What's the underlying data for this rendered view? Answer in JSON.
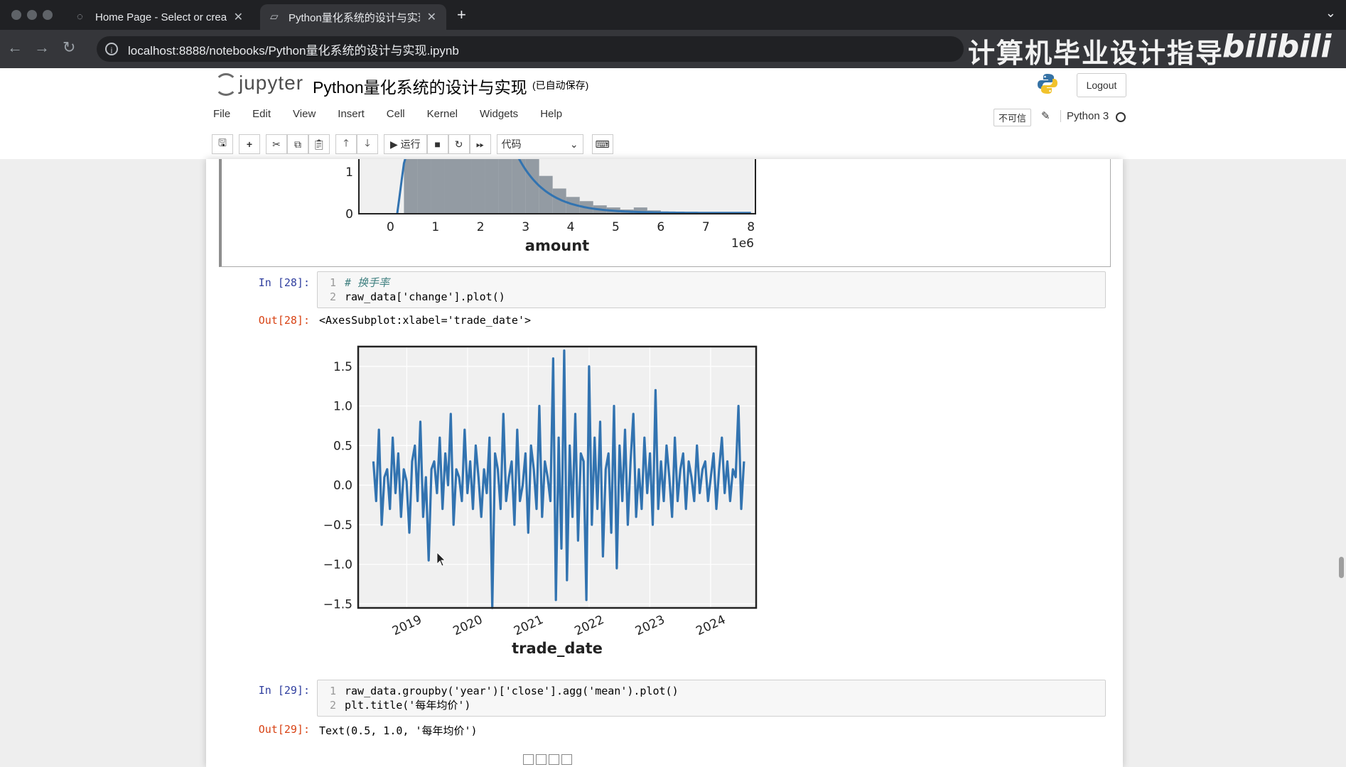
{
  "browser": {
    "tabs": [
      {
        "title": "Home Page - Select or creat",
        "active": false
      },
      {
        "title": "Python量化系统的设计与实现",
        "active": true
      }
    ],
    "url": "localhost:8888/notebooks/Python量化系统的设计与实现.ipynb",
    "watermark": "计算机毕业设计指导",
    "watermark_logo": "bilibili"
  },
  "jupyter": {
    "logo_text": "jupyter",
    "notebook_title": "Python量化系统的设计与实现",
    "autosave": "(已自动保存)",
    "logout_label": "Logout",
    "menus": [
      "File",
      "Edit",
      "View",
      "Insert",
      "Cell",
      "Kernel",
      "Widgets",
      "Help"
    ],
    "trust_label": "不可信",
    "kernel_name": "Python 3",
    "toolbar": {
      "run_label": "运行",
      "cell_type": "代码"
    }
  },
  "cells": [
    {
      "prompt_in": "In [28]:",
      "code": [
        "# 换手率",
        "raw_data['change'].plot()"
      ],
      "prompt_out": "Out[28]:",
      "output_text": "<AxesSubplot:xlabel='trade_date'>"
    },
    {
      "prompt_in": "In [29]:",
      "code": [
        "raw_data.groupby('year')['close'].agg('mean').plot()",
        "plt.title('每年均价')"
      ],
      "prompt_out": "Out[29]:",
      "output_text": "Text(0.5, 1.0, '每年均价')"
    }
  ],
  "chart_data": [
    {
      "type": "area",
      "description_partial": "histogram with kde (top cropped)",
      "xlabel": "amount",
      "x_offset_label": "1e6",
      "x_ticks": [
        "0",
        "1",
        "2",
        "3",
        "4",
        "5",
        "6",
        "7",
        "8"
      ],
      "y_ticks_visible": [
        "0",
        "1"
      ],
      "bins_x": [
        0.3,
        0.6,
        0.9,
        1.2,
        1.5,
        1.8,
        2.1,
        2.4,
        2.7,
        3.0,
        3.3,
        3.6,
        3.9,
        4.2,
        4.5,
        4.8,
        5.1,
        5.4,
        5.7,
        6.0,
        6.3,
        6.6,
        6.9,
        7.2,
        7.5,
        7.8
      ],
      "bins_y": [
        3.0,
        3.0,
        3.0,
        3.0,
        3.0,
        3.0,
        3.0,
        3.0,
        2.6,
        1.4,
        0.9,
        0.6,
        0.4,
        0.3,
        0.2,
        0.15,
        0.1,
        0.15,
        0.08,
        0.05,
        0.04,
        0.03,
        0.03,
        0.02,
        0.02,
        0.02
      ],
      "ylim": [
        0,
        1.3
      ],
      "xlim": [
        -0.7,
        8.1
      ]
    },
    {
      "type": "line",
      "xlabel": "trade_date",
      "ylabel": "",
      "x_ticks": [
        "2019",
        "2020",
        "2021",
        "2022",
        "2023",
        "2024"
      ],
      "y_ticks": [
        "1.5",
        "1.0",
        "0.5",
        "0.0",
        "-0.5",
        "-1.0",
        "-1.5"
      ],
      "ylim": [
        -1.55,
        1.75
      ],
      "xlim": [
        2018.2,
        2024.75
      ],
      "grid": true,
      "series": [
        {
          "color": "#3273b0",
          "x_start": 2018.45,
          "x_end": 2024.55,
          "values": [
            0.3,
            -0.2,
            0.7,
            -0.5,
            0.1,
            0.2,
            -0.3,
            0.6,
            -0.1,
            0.4,
            -0.4,
            0.2,
            0.05,
            -0.6,
            0.3,
            0.5,
            -0.2,
            0.8,
            -0.4,
            0.1,
            -0.95,
            0.2,
            0.3,
            -0.1,
            0.6,
            -0.3,
            0.4,
            0.0,
            0.9,
            -0.5,
            0.2,
            0.1,
            -0.2,
            0.7,
            -0.1,
            0.3,
            -0.3,
            0.5,
            0.1,
            -0.4,
            0.2,
            -0.1,
            0.6,
            -1.55,
            0.4,
            0.2,
            -0.3,
            0.9,
            -0.2,
            0.1,
            0.3,
            -0.5,
            0.7,
            -0.2,
            0.0,
            0.4,
            -0.6,
            0.5,
            0.2,
            -0.3,
            1.0,
            -0.4,
            0.3,
            0.1,
            -0.2,
            1.6,
            -1.45,
            0.6,
            -0.8,
            1.7,
            -1.2,
            0.5,
            -0.4,
            0.9,
            -0.7,
            0.4,
            0.3,
            -1.45,
            1.5,
            -0.5,
            0.6,
            -0.3,
            0.8,
            -0.9,
            0.2,
            0.4,
            -0.6,
            1.0,
            -1.05,
            0.5,
            -0.2,
            0.7,
            -0.5,
            0.3,
            0.9,
            -0.4,
            0.2,
            -0.3,
            0.6,
            -0.1,
            0.4,
            -0.5,
            1.2,
            -0.3,
            0.3,
            -0.2,
            0.5,
            0.1,
            -0.4,
            0.6,
            -0.2,
            0.2,
            0.4,
            -0.3,
            0.3,
            0.1,
            -0.2,
            0.5,
            -0.1,
            0.2,
            0.3,
            -0.2,
            0.1,
            0.4,
            -0.3,
            0.2,
            0.6,
            -0.1,
            0.3,
            -0.2,
            0.2,
            0.1,
            1.0,
            -0.3,
            0.3
          ]
        }
      ]
    }
  ]
}
